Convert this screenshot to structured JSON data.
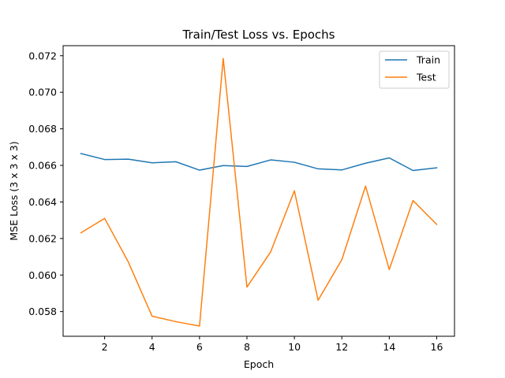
{
  "chart_data": {
    "type": "line",
    "title": "Train/Test Loss vs. Epochs",
    "xlabel": "Epoch",
    "ylabel": "MSE Loss (3 x 3 x 3)",
    "xlim": [
      0.25,
      16.75
    ],
    "ylim": [
      0.05665,
      0.07255
    ],
    "xticks": [
      2,
      4,
      6,
      8,
      10,
      12,
      14,
      16
    ],
    "yticks": [
      0.058,
      0.06,
      0.062,
      0.064,
      0.066,
      0.068,
      0.07,
      0.072
    ],
    "yticks_labels": [
      "0.058",
      "0.060",
      "0.062",
      "0.064",
      "0.066",
      "0.068",
      "0.070",
      "0.072"
    ],
    "grid": false,
    "legend_position": "top-right",
    "x": [
      1,
      2,
      3,
      4,
      5,
      6,
      7,
      8,
      9,
      10,
      11,
      12,
      13,
      14,
      15,
      16
    ],
    "series": [
      {
        "name": "Train",
        "color": "#1f77b4",
        "values": [
          0.06665,
          0.06632,
          0.06634,
          0.06614,
          0.0662,
          0.06574,
          0.06599,
          0.06594,
          0.0663,
          0.06617,
          0.06581,
          0.06575,
          0.06612,
          0.06641,
          0.06572,
          0.06587
        ]
      },
      {
        "name": "Test",
        "color": "#ff7f0e",
        "values": [
          0.06231,
          0.0631,
          0.06071,
          0.05775,
          0.05745,
          0.05721,
          0.07185,
          0.05934,
          0.06127,
          0.06461,
          0.05862,
          0.06084,
          0.06487,
          0.0603,
          0.06408,
          0.06277
        ]
      }
    ]
  }
}
